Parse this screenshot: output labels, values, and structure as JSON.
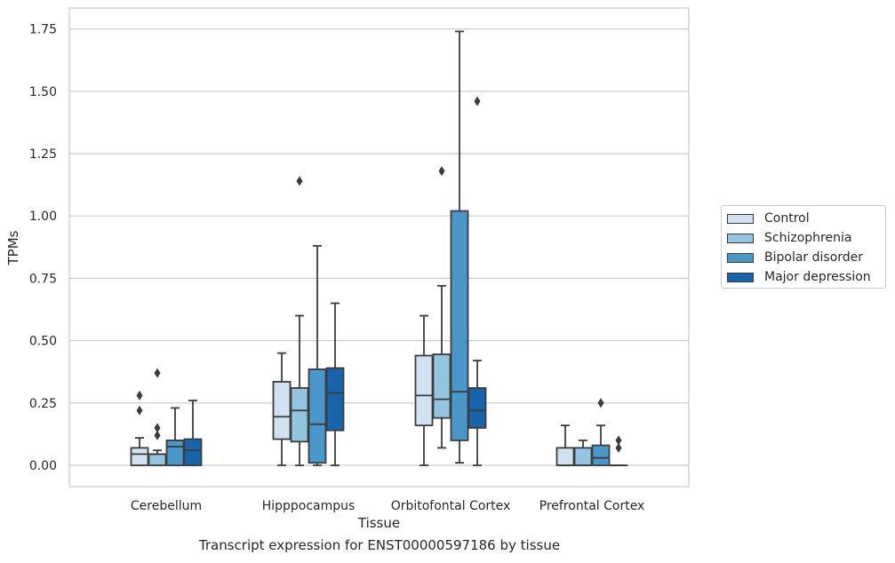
{
  "chart_data": {
    "type": "box",
    "title": "Transcript expression for ENST00000597186 by tissue",
    "xlabel": "Tissue",
    "ylabel": "TPMs",
    "ylim": [
      -0.085,
      1.83
    ],
    "yticks": [
      "0.00",
      "0.25",
      "0.50",
      "0.75",
      "1.00",
      "1.25",
      "1.50",
      "1.75"
    ],
    "categories": [
      "Cerebellum",
      "Hipppocampus",
      "Orbitofontal Cortex",
      "Prefrontal Cortex"
    ],
    "grid": true,
    "legend_position": "right",
    "series": [
      {
        "name": "Control",
        "color": "#d0e1f2",
        "boxes": [
          {
            "whislo": 0.0,
            "q1": 0.0,
            "med": 0.045,
            "q3": 0.07,
            "whishi": 0.11,
            "fliers": [
              0.22,
              0.28
            ]
          },
          {
            "whislo": 0.0,
            "q1": 0.105,
            "med": 0.195,
            "q3": 0.335,
            "whishi": 0.45,
            "fliers": []
          },
          {
            "whislo": 0.0,
            "q1": 0.16,
            "med": 0.28,
            "q3": 0.44,
            "whishi": 0.6,
            "fliers": []
          },
          {
            "whislo": 0.0,
            "q1": 0.0,
            "med": 0.0,
            "q3": 0.07,
            "whishi": 0.16,
            "fliers": []
          }
        ]
      },
      {
        "name": "Schizophrenia",
        "color": "#94c4df",
        "boxes": [
          {
            "whislo": 0.0,
            "q1": 0.0,
            "med": 0.045,
            "q3": 0.045,
            "whishi": 0.06,
            "fliers": [
              0.12,
              0.15,
              0.37
            ]
          },
          {
            "whislo": 0.0,
            "q1": 0.095,
            "med": 0.22,
            "q3": 0.31,
            "whishi": 0.6,
            "fliers": [
              1.14
            ]
          },
          {
            "whislo": 0.07,
            "q1": 0.19,
            "med": 0.265,
            "q3": 0.445,
            "whishi": 0.72,
            "fliers": [
              1.18
            ]
          },
          {
            "whislo": 0.0,
            "q1": 0.0,
            "med": 0.0,
            "q3": 0.07,
            "whishi": 0.1,
            "fliers": []
          }
        ]
      },
      {
        "name": "Bipolar disorder",
        "color": "#4a98c9",
        "boxes": [
          {
            "whislo": 0.0,
            "q1": 0.0,
            "med": 0.075,
            "q3": 0.1,
            "whishi": 0.23,
            "fliers": []
          },
          {
            "whislo": 0.0,
            "q1": 0.01,
            "med": 0.165,
            "q3": 0.385,
            "whishi": 0.88,
            "fliers": []
          },
          {
            "whislo": 0.01,
            "q1": 0.1,
            "med": 0.295,
            "q3": 1.02,
            "whishi": 1.74,
            "fliers": []
          },
          {
            "whislo": 0.0,
            "q1": 0.0,
            "med": 0.03,
            "q3": 0.08,
            "whishi": 0.16,
            "fliers": [
              0.25
            ]
          }
        ]
      },
      {
        "name": "Major depression",
        "color": "#1764ab",
        "boxes": [
          {
            "whislo": 0.0,
            "q1": 0.0,
            "med": 0.06,
            "q3": 0.105,
            "whishi": 0.26,
            "fliers": []
          },
          {
            "whislo": 0.0,
            "q1": 0.14,
            "med": 0.29,
            "q3": 0.39,
            "whishi": 0.65,
            "fliers": []
          },
          {
            "whislo": 0.0,
            "q1": 0.15,
            "med": 0.22,
            "q3": 0.31,
            "whishi": 0.42,
            "fliers": [
              1.46
            ]
          },
          {
            "whislo": 0.0,
            "q1": 0.0,
            "med": 0.0,
            "q3": 0.0,
            "whishi": 0.0,
            "fliers": [
              0.07,
              0.1
            ]
          }
        ]
      }
    ]
  }
}
